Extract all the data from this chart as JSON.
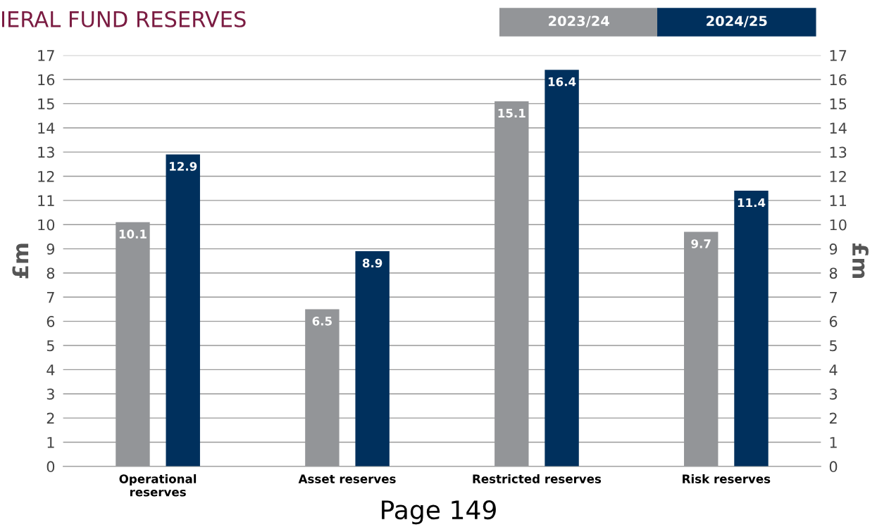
{
  "chart_data": {
    "type": "bar",
    "title": "IERAL FUND RESERVES",
    "categories": [
      "Operational\nreserves",
      "Asset reserves",
      "Restricted reserves",
      "Risk reserves"
    ],
    "series": [
      {
        "name": "2023/24",
        "color": "#939598",
        "values": [
          10.1,
          6.5,
          15.1,
          9.7
        ]
      },
      {
        "name": "2024/25",
        "color": "#00305d",
        "values": [
          12.9,
          8.9,
          16.4,
          11.4
        ]
      }
    ],
    "ylabel": "£m",
    "y2label": "£m",
    "ylim": [
      0,
      17
    ],
    "yticks": [
      0,
      1,
      2,
      3,
      4,
      5,
      6,
      7,
      8,
      9,
      10,
      11,
      12,
      13,
      14,
      15,
      16,
      17
    ],
    "y2lim": [
      0,
      17
    ],
    "y2ticks": [
      0,
      1,
      2,
      3,
      4,
      5,
      6,
      7,
      8,
      9,
      10,
      11,
      12,
      13,
      14,
      15,
      16,
      17
    ],
    "grid": "y",
    "legend": "top right",
    "data_labels": true,
    "annotations": [
      "Page 149"
    ]
  }
}
